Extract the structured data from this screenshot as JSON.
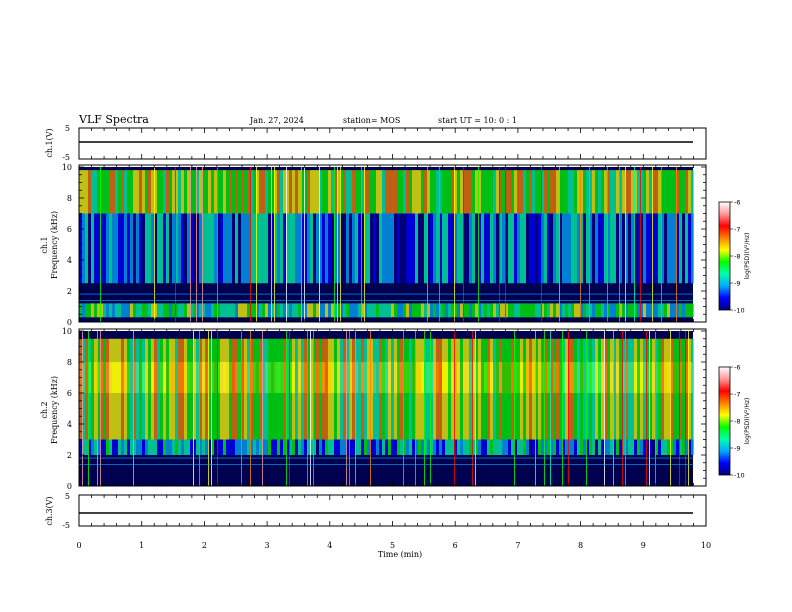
{
  "header": {
    "title": "VLF Spectra",
    "date": "Jan. 27, 2024",
    "station": "station= MOS",
    "start": "start  UT =  10: 0  : 1"
  },
  "panels": {
    "ch1_wave": {
      "label": "ch.1(V)",
      "ticks": [
        "5",
        "-5"
      ]
    },
    "ch1_spec": {
      "ylabel_line1": "ch.1",
      "ylabel_line2": "Frequency (kHz)",
      "ticks": [
        "0",
        "2",
        "4",
        "6",
        "8",
        "10"
      ]
    },
    "ch2_spec": {
      "ylabel_line1": "ch.2",
      "ylabel_line2": "Frequency (kHz)",
      "ticks": [
        "0",
        "2",
        "4",
        "6",
        "8",
        "10"
      ]
    },
    "ch3_wave": {
      "label": "ch.3(V)",
      "ticks": [
        "5",
        "-5"
      ]
    }
  },
  "xaxis": {
    "label": "Time (min)",
    "ticks": [
      "0",
      "1",
      "2",
      "3",
      "4",
      "5",
      "6",
      "7",
      "8",
      "9",
      "10"
    ]
  },
  "colorbar": {
    "label": "log(PSD)(V²/Hz)",
    "ticks": [
      "-6",
      "-7",
      "-8",
      "-9",
      "-10"
    ],
    "colors": [
      "#000080",
      "#0000ff",
      "#00aaff",
      "#00ffaa",
      "#00ff00",
      "#ffff00",
      "#ff8000",
      "#ff0000",
      "#ff9999",
      "#ffffff"
    ]
  },
  "chart_data": [
    {
      "type": "line",
      "title": "ch.1(V)",
      "xlabel": "Time (min)",
      "xlim": [
        0,
        10
      ],
      "ylim": [
        -5,
        5
      ],
      "x": [
        0,
        9.8
      ],
      "values": [
        -1,
        -1
      ]
    },
    {
      "type": "heatmap",
      "title": "ch.1",
      "ylabel": "Frequency (kHz)",
      "xlim": [
        0,
        10
      ],
      "ylim": [
        0,
        10
      ],
      "data_end_min": 9.8,
      "colorbar_range": [
        -10,
        -6
      ],
      "bands": [
        {
          "f_low": 7,
          "f_high": 9.8,
          "log_psd": -8
        },
        {
          "f_low": 2.5,
          "f_high": 7,
          "log_psd": -9.3
        },
        {
          "f_low": 0.3,
          "f_high": 1.2,
          "log_psd": -8.5
        }
      ]
    },
    {
      "type": "heatmap",
      "title": "ch.2",
      "ylabel": "Frequency (kHz)",
      "xlim": [
        0,
        10
      ],
      "ylim": [
        0,
        10
      ],
      "data_end_min": 9.8,
      "colorbar_range": [
        -10,
        -6
      ],
      "bands": [
        {
          "f_low": 6,
          "f_high": 8,
          "log_psd": -7
        },
        {
          "f_low": 3,
          "f_high": 9.5,
          "log_psd": -8
        },
        {
          "f_low": 2,
          "f_high": 3,
          "log_psd": -9
        }
      ]
    },
    {
      "type": "line",
      "title": "ch.3(V)",
      "xlabel": "Time (min)",
      "xlim": [
        0,
        10
      ],
      "ylim": [
        -5,
        5
      ],
      "x": [
        0,
        9.8
      ],
      "values": [
        -1,
        -1
      ]
    }
  ]
}
